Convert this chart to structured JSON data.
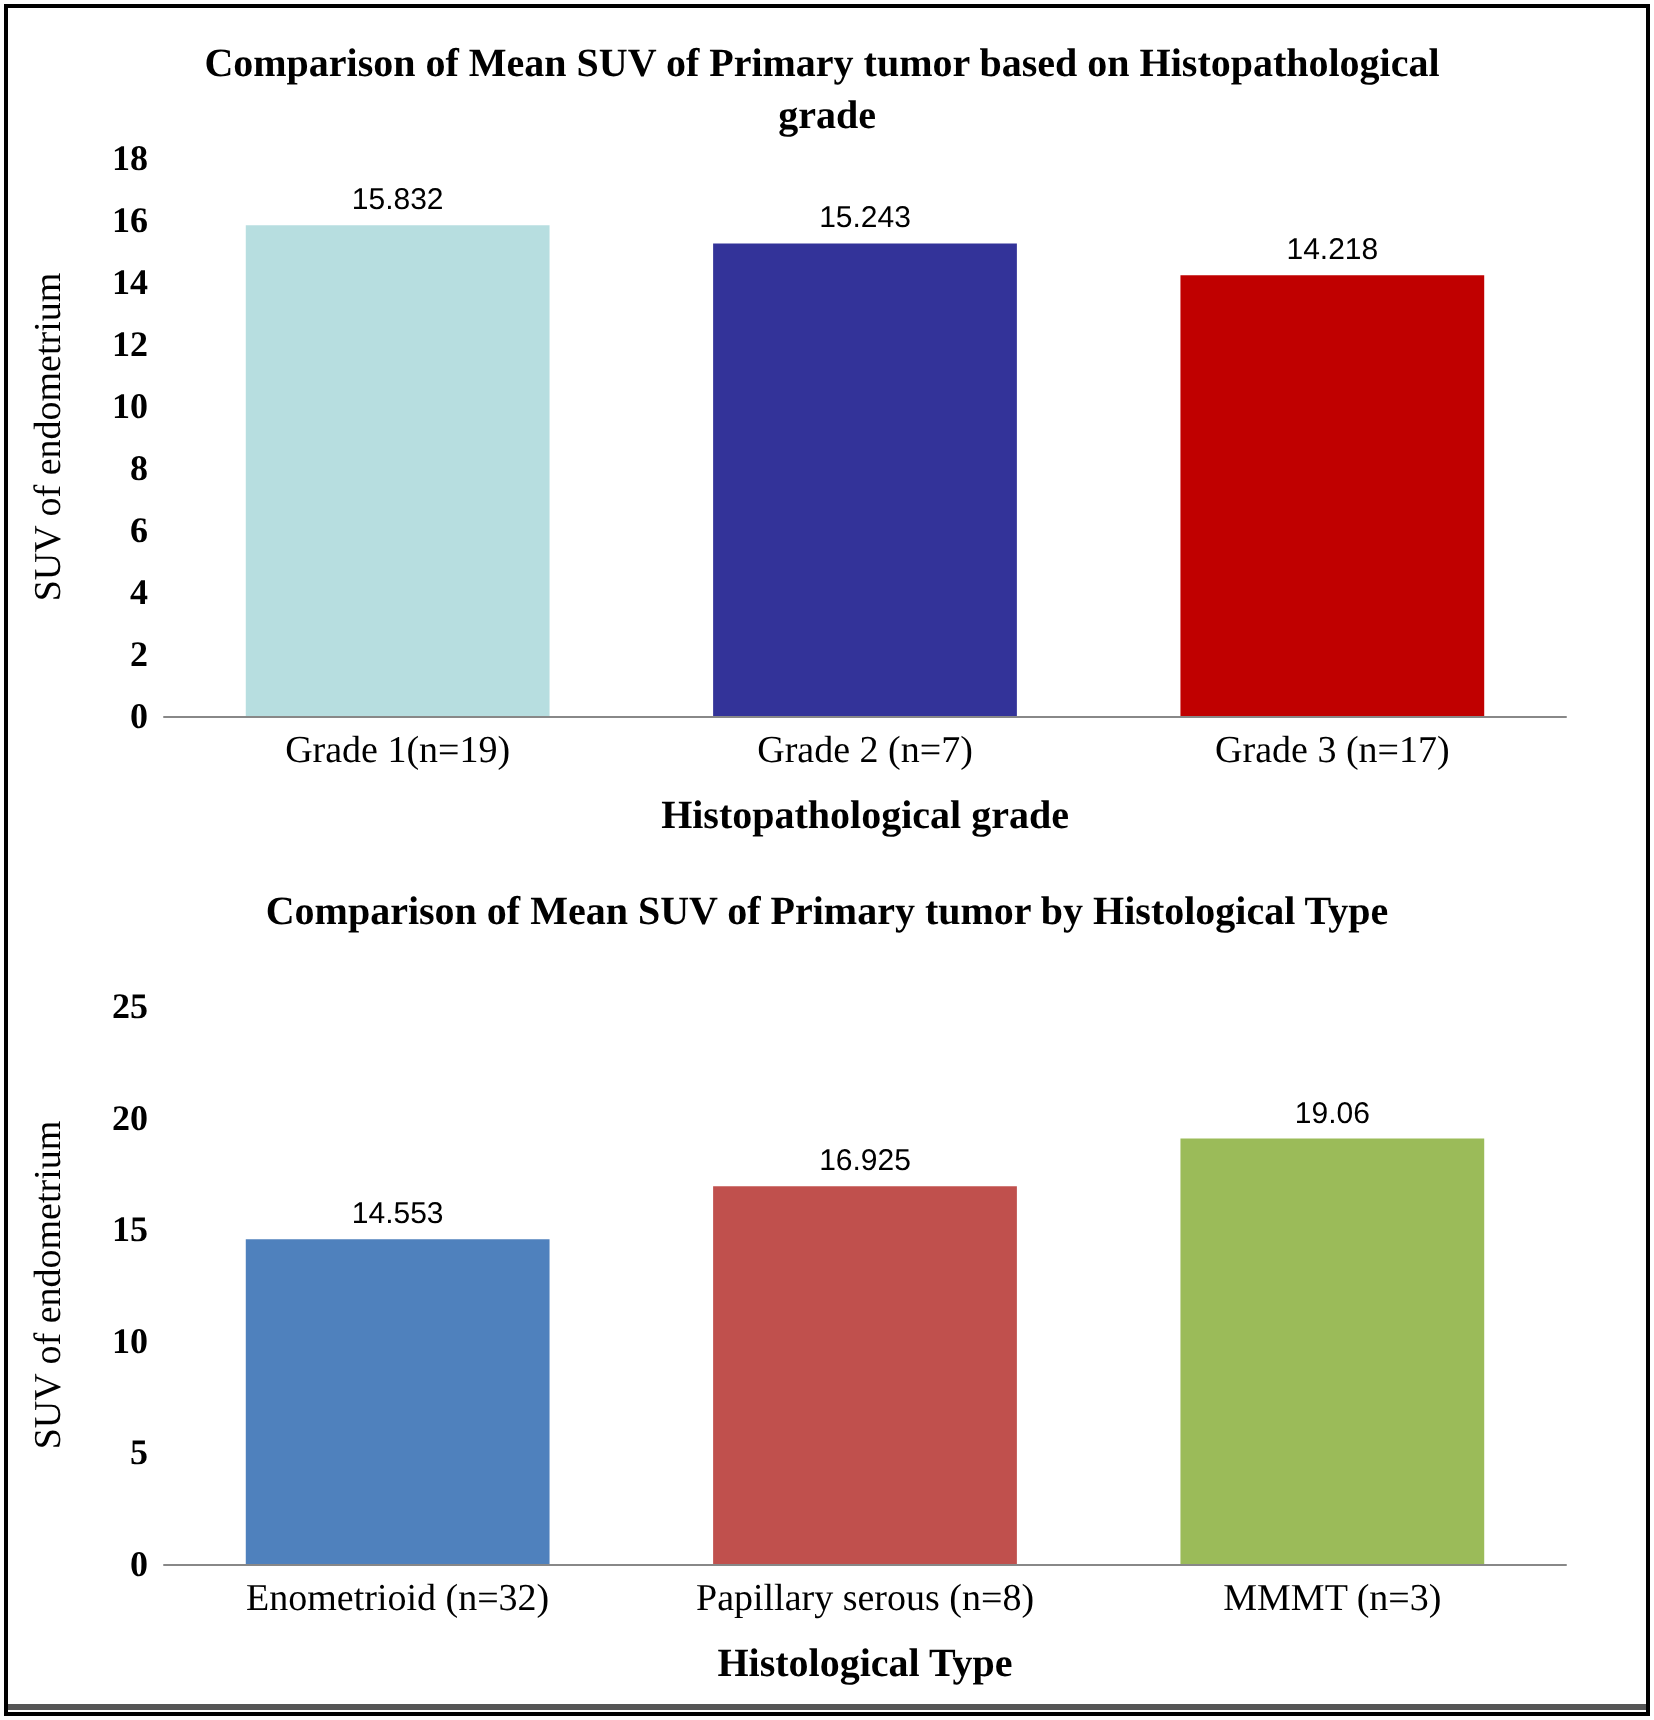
{
  "chart_data": [
    {
      "type": "bar",
      "title": "Comparison of Mean SUV of Primary tumor based on Histopathological grade",
      "xlabel": "Histopathological grade",
      "ylabel": "SUV of endometrium",
      "categories": [
        "Grade 1(n=19)",
        "Grade 2 (n=7)",
        "Grade 3 (n=17)"
      ],
      "values": [
        15.832,
        15.243,
        14.218
      ],
      "colors": [
        "#b7dee0",
        "#333399",
        "#c00000"
      ],
      "ylim": [
        0,
        18
      ],
      "yticks": [
        0,
        2,
        4,
        6,
        8,
        10,
        12,
        14,
        16,
        18
      ],
      "grid": false,
      "data_labels": true
    },
    {
      "type": "bar",
      "title": "Comparison of Mean SUV of Primary tumor by Histological Type",
      "xlabel": "Histological Type",
      "ylabel": "SUV of endometrium",
      "categories": [
        "Enometrioid (n=32)",
        "Papillary serous (n=8)",
        "MMMT (n=3)"
      ],
      "values": [
        14.553,
        16.925,
        19.06
      ],
      "colors": [
        "#4f81bd",
        "#c0504d",
        "#9bbb59"
      ],
      "ylim": [
        0,
        25
      ],
      "yticks": [
        0,
        5,
        10,
        15,
        20,
        25
      ],
      "grid": false,
      "data_labels": true
    }
  ]
}
